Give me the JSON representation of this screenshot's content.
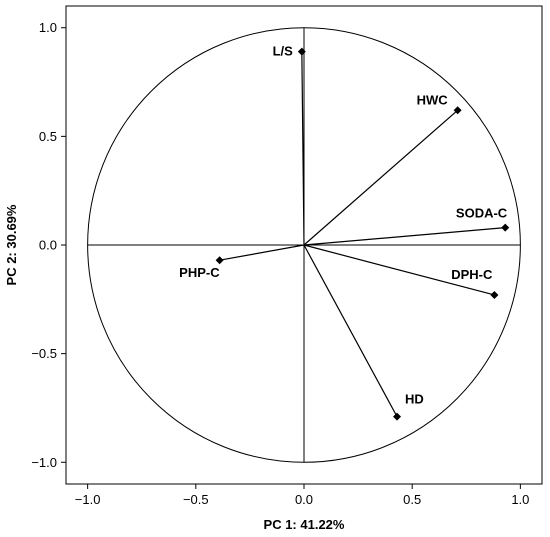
{
  "chart_data": {
    "type": "scatter",
    "subtype": "pca-correlation-circle",
    "title": "",
    "xlabel": "PC 1: 41.22%",
    "ylabel": "PC 2: 30.69%",
    "xlim": [
      -1.1,
      1.1
    ],
    "ylim": [
      -1.1,
      1.1
    ],
    "xticks": [
      -1.0,
      -0.5,
      0.0,
      0.5,
      1.0
    ],
    "yticks": [
      -1.0,
      -0.5,
      0.0,
      0.5,
      1.0
    ],
    "xtick_labels": [
      "−1.0",
      "−0.5",
      "0.0",
      "0.5",
      "1.0"
    ],
    "ytick_labels": [
      "−1.0",
      "−0.5",
      "0.0",
      "0.5",
      "1.0"
    ],
    "grid": false,
    "unit_circle": true,
    "points": [
      {
        "label": "L/S",
        "x": -0.01,
        "y": 0.89
      },
      {
        "label": "HWC",
        "x": 0.71,
        "y": 0.62
      },
      {
        "label": "SODA-C",
        "x": 0.93,
        "y": 0.08
      },
      {
        "label": "DPH-C",
        "x": 0.88,
        "y": -0.23
      },
      {
        "label": "HD",
        "x": 0.43,
        "y": -0.79
      },
      {
        "label": "PHP-C",
        "x": -0.39,
        "y": -0.07
      }
    ],
    "colors": {
      "lines": "#000000",
      "markers": "#000000",
      "background": "#ffffff"
    }
  }
}
